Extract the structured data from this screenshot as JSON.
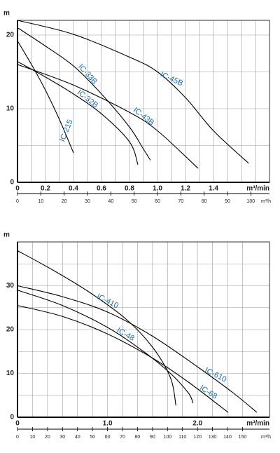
{
  "chart_data": [
    {
      "type": "line",
      "ylabel": "m",
      "xlabel": "m³/min",
      "x2label": "m³/h",
      "ylim": [
        0,
        22
      ],
      "yticks": [
        0,
        10,
        20
      ],
      "xlim": [
        0,
        1.8
      ],
      "xticks": [
        0,
        0.2,
        0.4,
        0.6,
        0.8,
        {
          "value": 1,
          "label": "1.0"
        },
        1.2,
        1.4
      ],
      "x2lim": [
        0,
        108
      ],
      "x2ticks": [
        0,
        10,
        20,
        30,
        40,
        50,
        60,
        70,
        80,
        90,
        100
      ],
      "grid": true,
      "xgrid": "x",
      "label_color": "#1a6fa8",
      "series": [
        {
          "name": "IC-45B",
          "color": "#000000",
          "x": [
            0,
            0.4,
            0.8,
            1.0,
            1.2,
            1.4,
            1.65
          ],
          "values": [
            22,
            20.1,
            17,
            15,
            11.5,
            7,
            2.6
          ]
        },
        {
          "name": "IC-33B",
          "color": "#000000",
          "x": [
            0,
            0.2,
            0.4,
            0.6,
            0.8,
            0.9,
            0.95
          ],
          "values": [
            21,
            18.5,
            15.8,
            12,
            7.5,
            4.5,
            3
          ]
        },
        {
          "name": "IC-32B",
          "color": "#000000",
          "x": [
            0,
            0.2,
            0.4,
            0.6,
            0.8,
            0.86
          ],
          "values": [
            16.4,
            14.3,
            12,
            9.3,
            5.5,
            2.4
          ]
        },
        {
          "name": "IC-43B",
          "color": "#000000",
          "x": [
            0,
            0.4,
            0.8,
            1.0,
            1.29
          ],
          "values": [
            16,
            13.2,
            9.5,
            7,
            1.9
          ]
        },
        {
          "name": "IC-215",
          "color": "#000000",
          "x": [
            0,
            0.1,
            0.2,
            0.3,
            0.4
          ],
          "values": [
            19.2,
            16,
            12.5,
            8.5,
            4
          ]
        }
      ]
    },
    {
      "type": "line",
      "ylabel": "m",
      "xlabel": "m³/min",
      "x2label": "m³/h",
      "ylim": [
        0,
        40
      ],
      "yticks": [
        0,
        10,
        20,
        30
      ],
      "xlim": [
        0,
        2.8
      ],
      "xticks": [
        0,
        {
          "value": 1,
          "label": "1.0"
        },
        {
          "value": 2,
          "label": "2.0"
        }
      ],
      "x2lim": [
        0,
        168
      ],
      "x2ticks": [
        0,
        10,
        20,
        30,
        40,
        50,
        60,
        70,
        80,
        90,
        100,
        110,
        120,
        130,
        140,
        150
      ],
      "grid": true,
      "xgrid": "x2",
      "label_color": "#1a6fa8",
      "series": [
        {
          "name": "IC-410",
          "color": "#000000",
          "x": [
            0,
            0.4,
            0.8,
            1.2,
            1.5,
            1.7,
            1.76
          ],
          "values": [
            38,
            33.5,
            28.5,
            22.5,
            16,
            9,
            2.7
          ]
        },
        {
          "name": "IC-610",
          "color": "#000000",
          "x": [
            0,
            0.5,
            1.0,
            1.5,
            2.0,
            2.4,
            2.66
          ],
          "values": [
            30,
            27.5,
            24,
            18.5,
            11.5,
            5.5,
            1.1
          ]
        },
        {
          "name": "IC-48",
          "color": "#000000",
          "x": [
            0,
            0.5,
            1.0,
            1.4,
            1.7,
            1.9,
            1.95
          ],
          "values": [
            29,
            25.5,
            20.5,
            15,
            10,
            5.5,
            3.2
          ]
        },
        {
          "name": "IC-68",
          "color": "#000000",
          "x": [
            0,
            0.5,
            1.0,
            1.5,
            1.9,
            2.34
          ],
          "values": [
            25.5,
            23,
            19,
            13.5,
            8,
            1.1
          ]
        }
      ]
    }
  ]
}
